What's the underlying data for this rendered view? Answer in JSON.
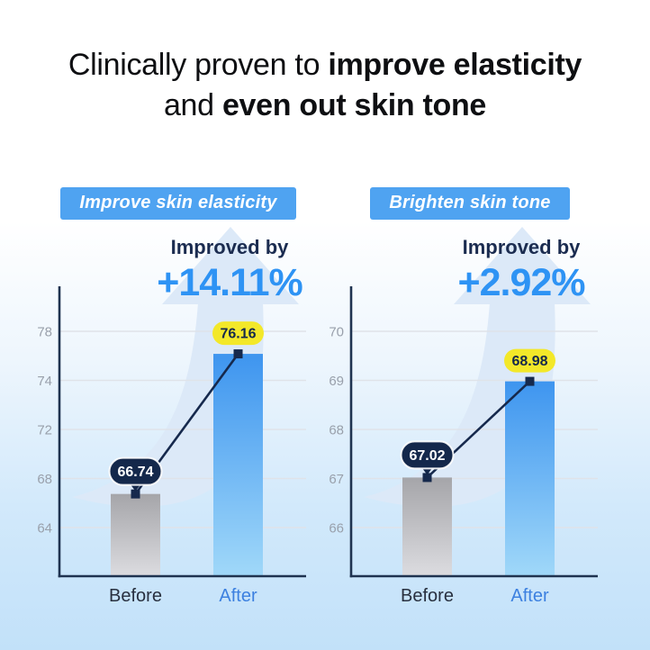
{
  "title": {
    "line1_regular": "Clinically proven to ",
    "line1_bold": "improve elasticity",
    "line2_regular": "and ",
    "line2_bold": "even out skin tone"
  },
  "colors": {
    "badge_blue": "#4fa3f1",
    "value_blue": "#2e93f4",
    "label_navy": "#1b2c50",
    "navy": "#16294d",
    "bubble_navy": "#14284b",
    "bubble_yellow": "#f3e829",
    "bar_blue_top": "#3e95ef",
    "bar_blue_bottom": "#a0d8f9",
    "bar_gray_top": "#a5a5a9",
    "bar_gray_bottom": "#dcdce0",
    "after_label_blue": "#3c80e0",
    "before_label": "#28303f",
    "tick_gray": "#99a0ab",
    "grid": "#dfe3e9",
    "arrow_fill": "#dce9f8",
    "axis": "#1f3350"
  },
  "chart_data": [
    {
      "type": "bar",
      "badge": "Improve skin elasticity",
      "improved_label": "Improved by",
      "improved_value": "+14.11%",
      "categories": [
        "Before",
        "After"
      ],
      "values": [
        66.74,
        76.16
      ],
      "value_labels": [
        "66.74",
        "76.16"
      ],
      "yticks": [
        78,
        74,
        72,
        68,
        64
      ],
      "grid": true,
      "legend": "none"
    },
    {
      "type": "bar",
      "badge": "Brighten skin tone",
      "improved_label": "Improved by",
      "improved_value": "+2.92%",
      "categories": [
        "Before",
        "After"
      ],
      "values": [
        67.02,
        68.98
      ],
      "value_labels": [
        "67.02",
        "68.98"
      ],
      "yticks": [
        70,
        69,
        68,
        67,
        66
      ],
      "grid": true,
      "legend": "none"
    }
  ]
}
